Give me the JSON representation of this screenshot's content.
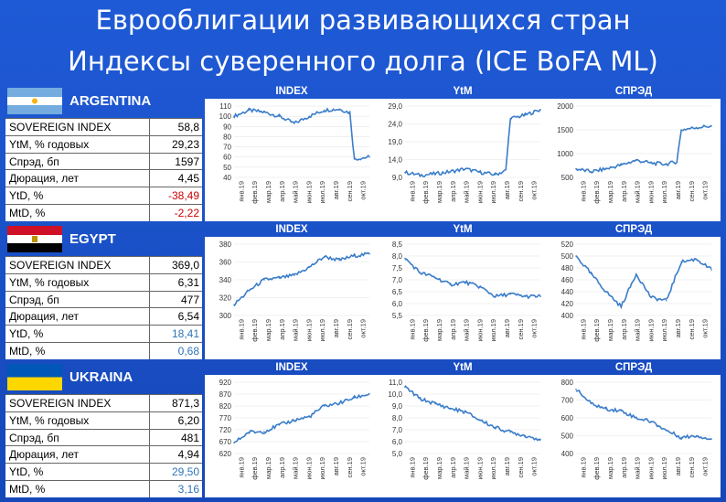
{
  "title_line1": "Еврооблигации развивающихся стран",
  "title_line2": "Индексы суверенного долга (ICE BoFA ML)",
  "months": [
    "янв.19",
    "фев.19",
    "мар.19",
    "апр.19",
    "май.19",
    "июн.19",
    "июл.19",
    "авг.19",
    "сен.19",
    "окт.19"
  ],
  "colors": {
    "line": "#3a7dc9",
    "negative": "#cc0000",
    "positive": "#2e75b6",
    "header": "#1f5ad6"
  },
  "countries": [
    {
      "name": "ARGENTINA",
      "flag_icon": "argentina-flag-icon",
      "stats": [
        {
          "label": "SOVEREIGN INDEX",
          "value": "58,8",
          "tone": "normal"
        },
        {
          "label": "YtM, % годовых",
          "value": "29,23",
          "tone": "normal"
        },
        {
          "label": "Спрэд, бп",
          "value": "1597",
          "tone": "normal"
        },
        {
          "label": "Дюрация, лет",
          "value": "4,45",
          "tone": "normal"
        },
        {
          "label": "YtD, %",
          "value": "-38,49",
          "tone": "negative"
        },
        {
          "label": "MtD, %",
          "value": "-2,22",
          "tone": "negative"
        }
      ]
    },
    {
      "name": "EGYPT",
      "flag_icon": "egypt-flag-icon",
      "stats": [
        {
          "label": "SOVEREIGN INDEX",
          "value": "369,0",
          "tone": "normal"
        },
        {
          "label": "YtM, % годовых",
          "value": "6,31",
          "tone": "normal"
        },
        {
          "label": "Спрэд, бп",
          "value": "477",
          "tone": "normal"
        },
        {
          "label": "Дюрация, лет",
          "value": "6,54",
          "tone": "normal"
        },
        {
          "label": "YtD, %",
          "value": "18,41",
          "tone": "positive"
        },
        {
          "label": "MtD, %",
          "value": "0,68",
          "tone": "positive"
        }
      ]
    },
    {
      "name": "UKRAINA",
      "flag_icon": "ukraine-flag-icon",
      "stats": [
        {
          "label": "SOVEREIGN INDEX",
          "value": "871,3",
          "tone": "normal"
        },
        {
          "label": "YtM, % годовых",
          "value": "6,20",
          "tone": "normal"
        },
        {
          "label": "Спрэд, бп",
          "value": "481",
          "tone": "normal"
        },
        {
          "label": "Дюрация, лет",
          "value": "4,94",
          "tone": "normal"
        },
        {
          "label": "YtD, %",
          "value": "29,50",
          "tone": "positive"
        },
        {
          "label": "MtD, %",
          "value": "3,16",
          "tone": "positive"
        }
      ]
    }
  ],
  "chart_data": [
    {
      "country": "ARGENTINA",
      "title": "INDEX",
      "type": "line",
      "ylim": [
        40,
        110
      ],
      "yticks": [
        "40",
        "50",
        "60",
        "70",
        "80",
        "90",
        "100",
        "110"
      ],
      "x": [
        "2019-01",
        "2019-02",
        "2019-03",
        "2019-04",
        "2019-05",
        "2019-06",
        "2019-07",
        "2019-08",
        "2019-09",
        "2019-10"
      ],
      "values": [
        100,
        106,
        104,
        100,
        93,
        100,
        106,
        107,
        58,
        60
      ]
    },
    {
      "country": "ARGENTINA",
      "title": "YtM",
      "type": "line",
      "ylim": [
        9.0,
        29.0
      ],
      "yticks": [
        "9,0",
        "14,0",
        "19,0",
        "24,0",
        "29,0"
      ],
      "x": [
        "2019-01",
        "2019-02",
        "2019-03",
        "2019-04",
        "2019-05",
        "2019-06",
        "2019-07",
        "2019-08",
        "2019-09",
        "2019-10"
      ],
      "values": [
        10.4,
        9.6,
        10.0,
        10.6,
        11.4,
        10.4,
        9.8,
        25.5,
        26.5,
        28.0
      ]
    },
    {
      "country": "ARGENTINA",
      "title": "СПРЭД",
      "type": "line",
      "ylim": [
        500,
        2000
      ],
      "yticks": [
        "500",
        "1000",
        "1500",
        "2000"
      ],
      "x": [
        "2019-01",
        "2019-02",
        "2019-03",
        "2019-04",
        "2019-05",
        "2019-06",
        "2019-07",
        "2019-08",
        "2019-09",
        "2019-10"
      ],
      "values": [
        680,
        620,
        680,
        760,
        860,
        800,
        780,
        1500,
        1550,
        1580
      ]
    },
    {
      "country": "EGYPT",
      "title": "INDEX",
      "type": "line",
      "ylim": [
        300,
        380
      ],
      "yticks": [
        "300",
        "320",
        "340",
        "360",
        "380"
      ],
      "x": [
        "2019-01",
        "2019-02",
        "2019-03",
        "2019-04",
        "2019-05",
        "2019-06",
        "2019-07",
        "2019-08",
        "2019-09",
        "2019-10"
      ],
      "values": [
        312,
        328,
        340,
        342,
        345,
        354,
        366,
        362,
        367,
        369
      ]
    },
    {
      "country": "EGYPT",
      "title": "YtM",
      "type": "line",
      "ylim": [
        5.5,
        8.5
      ],
      "yticks": [
        "5,5",
        "6,0",
        "6,5",
        "7,0",
        "7,5",
        "8,0",
        "8,5"
      ],
      "x": [
        "2019-01",
        "2019-02",
        "2019-03",
        "2019-04",
        "2019-05",
        "2019-06",
        "2019-07",
        "2019-08",
        "2019-09",
        "2019-10"
      ],
      "values": [
        7.9,
        7.3,
        7.1,
        6.8,
        6.9,
        6.7,
        6.3,
        6.4,
        6.3,
        6.3
      ]
    },
    {
      "country": "EGYPT",
      "title": "СПРЭД",
      "type": "line",
      "ylim": [
        400,
        520
      ],
      "yticks": [
        "400",
        "420",
        "440",
        "460",
        "480",
        "500",
        "520"
      ],
      "x": [
        "2019-01",
        "2019-02",
        "2019-03",
        "2019-04",
        "2019-05",
        "2019-06",
        "2019-07",
        "2019-08",
        "2019-09",
        "2019-10"
      ],
      "values": [
        500,
        470,
        440,
        415,
        470,
        430,
        425,
        490,
        495,
        477
      ]
    },
    {
      "country": "UKRAINA",
      "title": "INDEX",
      "type": "line",
      "ylim": [
        620,
        920
      ],
      "yticks": [
        "620",
        "670",
        "720",
        "770",
        "820",
        "870",
        "920"
      ],
      "x": [
        "2019-01",
        "2019-02",
        "2019-03",
        "2019-04",
        "2019-05",
        "2019-06",
        "2019-07",
        "2019-08",
        "2019-09",
        "2019-10"
      ],
      "values": [
        665,
        710,
        712,
        740,
        760,
        775,
        820,
        832,
        855,
        871
      ]
    },
    {
      "country": "UKRAINA",
      "title": "YtM",
      "type": "line",
      "ylim": [
        5.0,
        11.0
      ],
      "yticks": [
        "5,0",
        "6,0",
        "7,0",
        "8,0",
        "9,0",
        "10,0",
        "11,0"
      ],
      "x": [
        "2019-01",
        "2019-02",
        "2019-03",
        "2019-04",
        "2019-05",
        "2019-06",
        "2019-07",
        "2019-08",
        "2019-09",
        "2019-10"
      ],
      "values": [
        10.6,
        9.6,
        9.2,
        8.8,
        8.5,
        7.8,
        7.2,
        6.8,
        6.5,
        6.2
      ]
    },
    {
      "country": "UKRAINA",
      "title": "СПРЭД",
      "type": "line",
      "ylim": [
        400,
        800
      ],
      "yticks": [
        "400",
        "500",
        "600",
        "700",
        "800"
      ],
      "x": [
        "2019-01",
        "2019-02",
        "2019-03",
        "2019-04",
        "2019-05",
        "2019-06",
        "2019-07",
        "2019-08",
        "2019-09",
        "2019-10"
      ],
      "values": [
        760,
        680,
        650,
        640,
        600,
        580,
        530,
        490,
        500,
        481
      ]
    }
  ]
}
